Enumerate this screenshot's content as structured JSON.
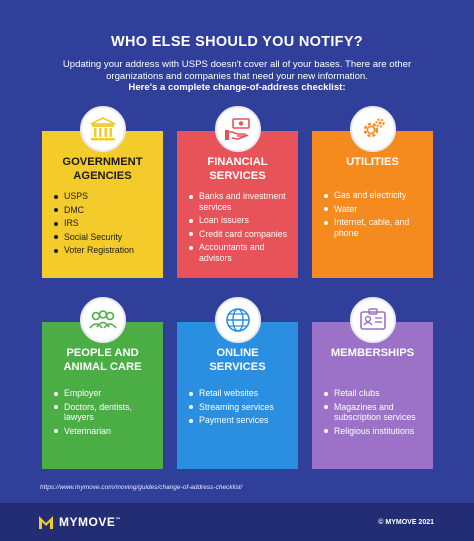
{
  "header": {
    "title": "WHO ELSE SHOULD YOU NOTIFY?",
    "intro_line1": "Updating your address with USPS doesn't cover all of your bases. There are other",
    "intro_line2": "organizations and companies that need your new information.",
    "intro_line3": "Here's a complete change-of-address checklist:"
  },
  "cards": [
    {
      "icon": "bank-building-icon",
      "color": "#f3cb2a",
      "title_line1": "GOVERNMENT",
      "title_line2": "AGENCIES",
      "items": [
        "USPS",
        "DMC",
        "IRS",
        "Social Security",
        "Voter Registration"
      ]
    },
    {
      "icon": "money-hand-icon",
      "color": "#e8535a",
      "title_line1": "FINANCIAL",
      "title_line2": "SERVICES",
      "items": [
        "Banks and investment services",
        "Loan issuers",
        "Credit card companies",
        "Accountants and advisors"
      ]
    },
    {
      "icon": "gears-icon",
      "color": "#f58a1f",
      "title_line1": "UTILITIES",
      "title_line2": "",
      "items": [
        "Gas and electricity",
        "Water",
        "Internet, cable, and phone"
      ]
    },
    {
      "icon": "people-group-icon",
      "color": "#4aae45",
      "title_line1": "PEOPLE AND",
      "title_line2": "ANIMAL CARE",
      "items": [
        "Employer",
        "Doctors, dentists, lawyers",
        "Veterinarian"
      ]
    },
    {
      "icon": "globe-icon",
      "color": "#2a8fe0",
      "title_line1": "ONLINE",
      "title_line2": "SERVICES",
      "items": [
        "Retail websites",
        "Streaming services",
        "Payment services"
      ]
    },
    {
      "icon": "membership-card-icon",
      "color": "#9b72c8",
      "title_line1": "MEMBERSHIPS",
      "title_line2": "",
      "items": [
        "Retail clubs",
        "Magazines and subscription services",
        "Religious institutions"
      ]
    }
  ],
  "source_url": "https://www.mymove.com/moving/guides/change-of-address-checklist/",
  "footer": {
    "brand": "MYMOVE",
    "trademark": "™",
    "copyright": "© MYMOVE 2021"
  }
}
